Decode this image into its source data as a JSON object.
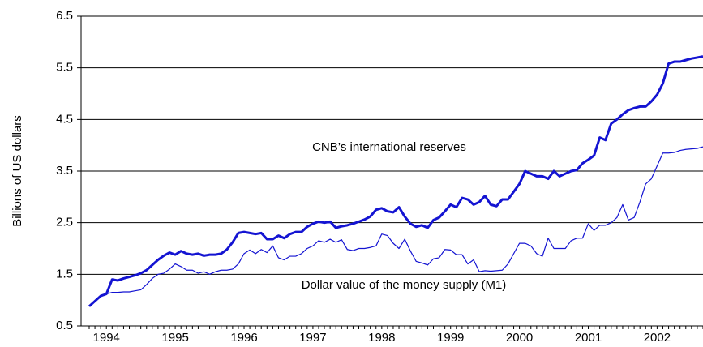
{
  "chart_data": {
    "type": "line",
    "y_label": "Billions of US dollars",
    "annotations": [
      "CNB’s international reserves",
      "Dollar value of the money supply (M1)"
    ],
    "categories": [
      null,
      null,
      null,
      "1994",
      null,
      null,
      null,
      null,
      null,
      null,
      null,
      null,
      null,
      null,
      null,
      "1995",
      null,
      null,
      null,
      null,
      null,
      null,
      null,
      null,
      null,
      null,
      null,
      "1996",
      null,
      null,
      null,
      null,
      null,
      null,
      null,
      null,
      null,
      null,
      null,
      "1997",
      null,
      null,
      null,
      null,
      null,
      null,
      null,
      null,
      null,
      null,
      null,
      "1998",
      null,
      null,
      null,
      null,
      null,
      null,
      null,
      null,
      null,
      null,
      null,
      "1999",
      null,
      null,
      null,
      null,
      null,
      null,
      null,
      null,
      null,
      null,
      null,
      "2000",
      null,
      null,
      null,
      null,
      null,
      null,
      null,
      null,
      null,
      null,
      null,
      "2001",
      null,
      null,
      null,
      null,
      null,
      null,
      null,
      null,
      null,
      null,
      null,
      "2002",
      null,
      null,
      null,
      null,
      null,
      null,
      null,
      null
    ],
    "series": [
      {
        "name": "CNB’s international reserves",
        "color": "#1414d2",
        "width": 3,
        "values": [
          0.88,
          0.98,
          1.08,
          1.12,
          1.4,
          1.38,
          1.42,
          1.45,
          1.48,
          1.52,
          1.58,
          1.68,
          1.78,
          1.86,
          1.92,
          1.88,
          1.95,
          1.9,
          1.88,
          1.9,
          1.86,
          1.88,
          1.88,
          1.9,
          1.98,
          2.12,
          2.3,
          2.32,
          2.3,
          2.28,
          2.3,
          2.18,
          2.18,
          2.25,
          2.2,
          2.28,
          2.32,
          2.32,
          2.42,
          2.48,
          2.52,
          2.5,
          2.52,
          2.4,
          2.43,
          2.45,
          2.48,
          2.52,
          2.56,
          2.62,
          2.75,
          2.78,
          2.72,
          2.7,
          2.8,
          2.62,
          2.48,
          2.42,
          2.45,
          2.4,
          2.55,
          2.6,
          2.72,
          2.85,
          2.8,
          2.98,
          2.95,
          2.85,
          2.9,
          3.02,
          2.85,
          2.82,
          2.95,
          2.95,
          3.1,
          3.25,
          3.5,
          3.45,
          3.4,
          3.4,
          3.35,
          3.5,
          3.4,
          3.45,
          3.5,
          3.52,
          3.65,
          3.72,
          3.8,
          4.15,
          4.1,
          4.42,
          4.5,
          4.6,
          4.68,
          4.72,
          4.75,
          4.75,
          4.85,
          4.98,
          5.2,
          5.58,
          5.62,
          5.62,
          5.65,
          5.68,
          5.7,
          5.72
        ]
      },
      {
        "name": "Dollar value of the money supply (M1)",
        "color": "#1414d2",
        "width": 1.2,
        "values": [
          0.88,
          0.98,
          1.08,
          1.12,
          1.15,
          1.15,
          1.16,
          1.16,
          1.18,
          1.2,
          1.3,
          1.42,
          1.5,
          1.52,
          1.6,
          1.7,
          1.65,
          1.58,
          1.58,
          1.52,
          1.55,
          1.5,
          1.55,
          1.58,
          1.58,
          1.6,
          1.7,
          1.9,
          1.97,
          1.9,
          1.98,
          1.92,
          2.05,
          1.82,
          1.78,
          1.85,
          1.85,
          1.9,
          2.0,
          2.05,
          2.15,
          2.12,
          2.18,
          2.12,
          2.17,
          1.98,
          1.96,
          2.0,
          2.0,
          2.02,
          2.05,
          2.28,
          2.25,
          2.1,
          2.0,
          2.18,
          1.95,
          1.75,
          1.72,
          1.68,
          1.8,
          1.82,
          1.98,
          1.97,
          1.88,
          1.88,
          1.7,
          1.78,
          1.55,
          1.57,
          1.56,
          1.57,
          1.58,
          1.7,
          1.9,
          2.1,
          2.1,
          2.05,
          1.9,
          1.85,
          2.2,
          2.0,
          2.0,
          2.0,
          2.15,
          2.2,
          2.2,
          2.48,
          2.35,
          2.45,
          2.45,
          2.5,
          2.6,
          2.85,
          2.55,
          2.6,
          2.9,
          3.25,
          3.35,
          3.6,
          3.85,
          3.85,
          3.86,
          3.9,
          3.92,
          3.93,
          3.94,
          3.97
        ]
      }
    ],
    "ylim": [
      0.5,
      6.5
    ],
    "yticks": [
      0.5,
      1.5,
      2.5,
      3.5,
      4.5,
      5.5,
      6.5
    ],
    "grid": true
  }
}
